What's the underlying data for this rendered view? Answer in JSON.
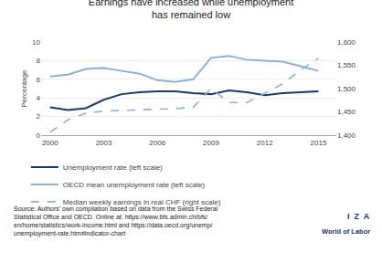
{
  "chart_data": {
    "type": "line",
    "title": "Earnings have increased while unemployment\nhas remained low",
    "y_label": "Percentage",
    "x": [
      2000,
      2001,
      2002,
      2003,
      2004,
      2005,
      2006,
      2007,
      2008,
      2009,
      2010,
      2011,
      2012,
      2013,
      2014,
      2015
    ],
    "xlim": [
      1999.5,
      2016
    ],
    "xticks": [
      2000,
      2003,
      2006,
      2009,
      2012,
      2015
    ],
    "ylim": [
      0,
      10
    ],
    "yticks": [
      0,
      2,
      4,
      6,
      8,
      10
    ],
    "y2lim": [
      1400,
      1600
    ],
    "y2ticks": [
      {
        "value": 1400,
        "label": "1,400"
      },
      {
        "value": 1450,
        "label": "1,450"
      },
      {
        "value": 1500,
        "label": "1,500"
      },
      {
        "value": 1550,
        "label": "1,550"
      },
      {
        "value": 1600,
        "label": "1,600"
      }
    ],
    "grid": true,
    "series": [
      {
        "name": "Unemployment rate (left scale)",
        "color": "#1a3a6b",
        "line_style": "solid",
        "values": [
          3.0,
          2.7,
          2.9,
          3.8,
          4.4,
          4.6,
          4.7,
          4.7,
          4.5,
          4.4,
          4.8,
          4.6,
          4.3,
          4.5,
          4.6,
          4.7
        ]
      },
      {
        "name": "OECD mean unemployment rate (left scale)",
        "color": "#88b4d8",
        "line_style": "solid",
        "values": [
          6.3,
          6.5,
          7.1,
          7.2,
          6.9,
          6.6,
          5.9,
          5.7,
          6.0,
          8.3,
          8.5,
          8.1,
          8.0,
          7.9,
          7.4,
          6.9
        ]
      },
      {
        "name": "Median weekly earnings in real CHF (right scale)",
        "color": "#88b4d8",
        "line_style": "dashed",
        "axis": "y2",
        "values": [
          1406,
          1433,
          1447,
          1452,
          1453,
          1454,
          1455,
          1457,
          1460,
          1500,
          1470,
          1470,
          1490,
          1510,
          1540,
          1565
        ]
      }
    ],
    "annotations": [
      "Source: Authors’ own compilation based on data from the Swiss Federal\nStatistical Office and OECD. Online at: https://www.bfs.admin.ch/bfs/\nen/home/statistics/work-income.html and https://data.oecd.org/unemp/\nunemployment-rate.htm#indicator-chart",
      "I  Z  A",
      "World of Labor"
    ]
  }
}
